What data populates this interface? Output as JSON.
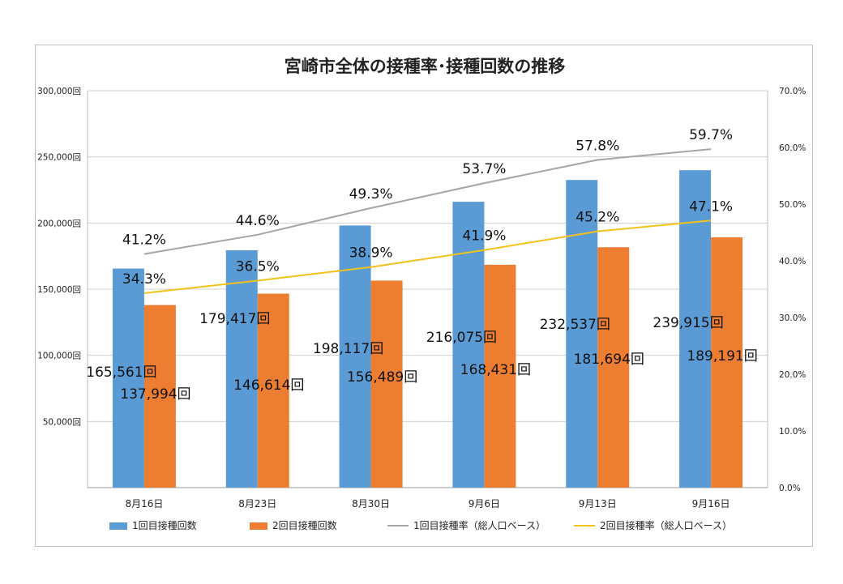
{
  "chart_data": {
    "type": "bar",
    "title": "宮崎市全体の接種率･接種回数の推移",
    "categories": [
      "8月16日",
      "8月23日",
      "8月30日",
      "9月6日",
      "9月13日",
      "9月16日"
    ],
    "series": [
      {
        "name": "1回目接種回数",
        "kind": "bar",
        "axis": "left",
        "color": "#5b9bd5",
        "values": [
          165561,
          179417,
          198117,
          216075,
          232537,
          239915
        ],
        "labels": [
          "165,561回",
          "179,417回",
          "198,117回",
          "216,075回",
          "232,537回",
          "239,915回"
        ]
      },
      {
        "name": "2回目接種回数",
        "kind": "bar",
        "axis": "left",
        "color": "#ed7d31",
        "values": [
          137994,
          146614,
          156489,
          168431,
          181694,
          189191
        ],
        "labels": [
          "137,994回",
          "146,614回",
          "156,489回",
          "168,431回",
          "181,694回",
          "189,191回"
        ]
      },
      {
        "name": "1回目接種率（総人口ベース）",
        "kind": "line",
        "axis": "right",
        "color": "#a5a5a5",
        "values": [
          41.2,
          44.6,
          49.3,
          53.7,
          57.8,
          59.7
        ],
        "labels": [
          "41.2%",
          "44.6%",
          "49.3%",
          "53.7%",
          "57.8%",
          "59.7%"
        ]
      },
      {
        "name": "2回目接種率（総人口ベース）",
        "kind": "line",
        "axis": "right",
        "color": "#f2c219",
        "values": [
          34.3,
          36.5,
          38.9,
          41.9,
          45.2,
          47.1
        ],
        "labels": [
          "34.3%",
          "36.5%",
          "38.9%",
          "41.9%",
          "45.2%",
          "47.1%"
        ]
      }
    ],
    "y_left": {
      "range": [
        0,
        300000
      ],
      "ticks": [
        "",
        "50,000回",
        "100,000回",
        "150,000回",
        "200,000回",
        "250,000回",
        "300,000回"
      ]
    },
    "y_right": {
      "range": [
        0,
        70
      ],
      "ticks": [
        "0.0%",
        "10.0%",
        "20.0%",
        "30.0%",
        "40.0%",
        "50.0%",
        "60.0%",
        "70.0%"
      ]
    },
    "gridlines": true,
    "legend_position": "bottom"
  }
}
